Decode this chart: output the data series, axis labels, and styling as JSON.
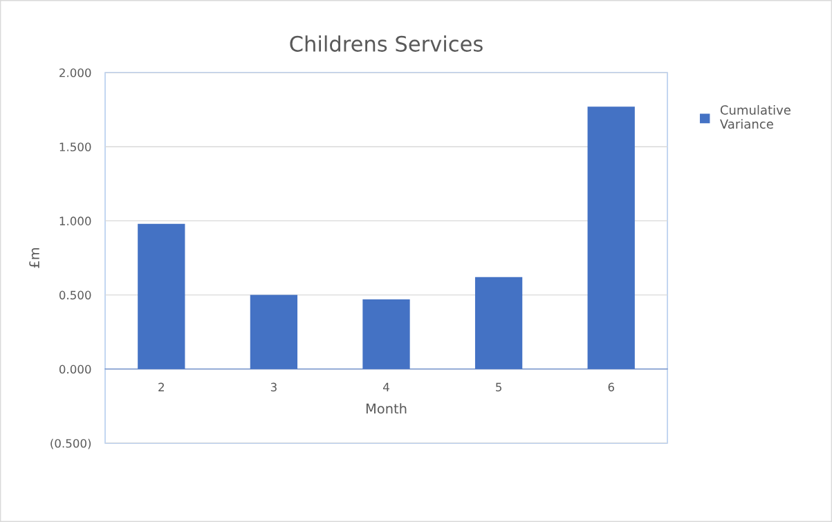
{
  "chart_data": {
    "type": "bar",
    "title": "Childrens Services",
    "xlabel": "Month",
    "ylabel": "£m",
    "categories": [
      "2",
      "3",
      "4",
      "5",
      "6"
    ],
    "series": [
      {
        "name": "Cumulative Variance",
        "color": "#4472c4",
        "values": [
          0.98,
          0.5,
          0.47,
          0.62,
          1.77
        ]
      }
    ],
    "ylim": [
      -0.5,
      2.0
    ],
    "yticks": [
      {
        "value": -0.5,
        "label": "(0.500)"
      },
      {
        "value": 0,
        "label": "0.000"
      },
      {
        "value": 0.5,
        "label": "0.500"
      },
      {
        "value": 1.0,
        "label": "1.000"
      },
      {
        "value": 1.5,
        "label": "1.500"
      },
      {
        "value": 2.0,
        "label": "2.000"
      }
    ],
    "grid": "y",
    "legend": "top right"
  }
}
